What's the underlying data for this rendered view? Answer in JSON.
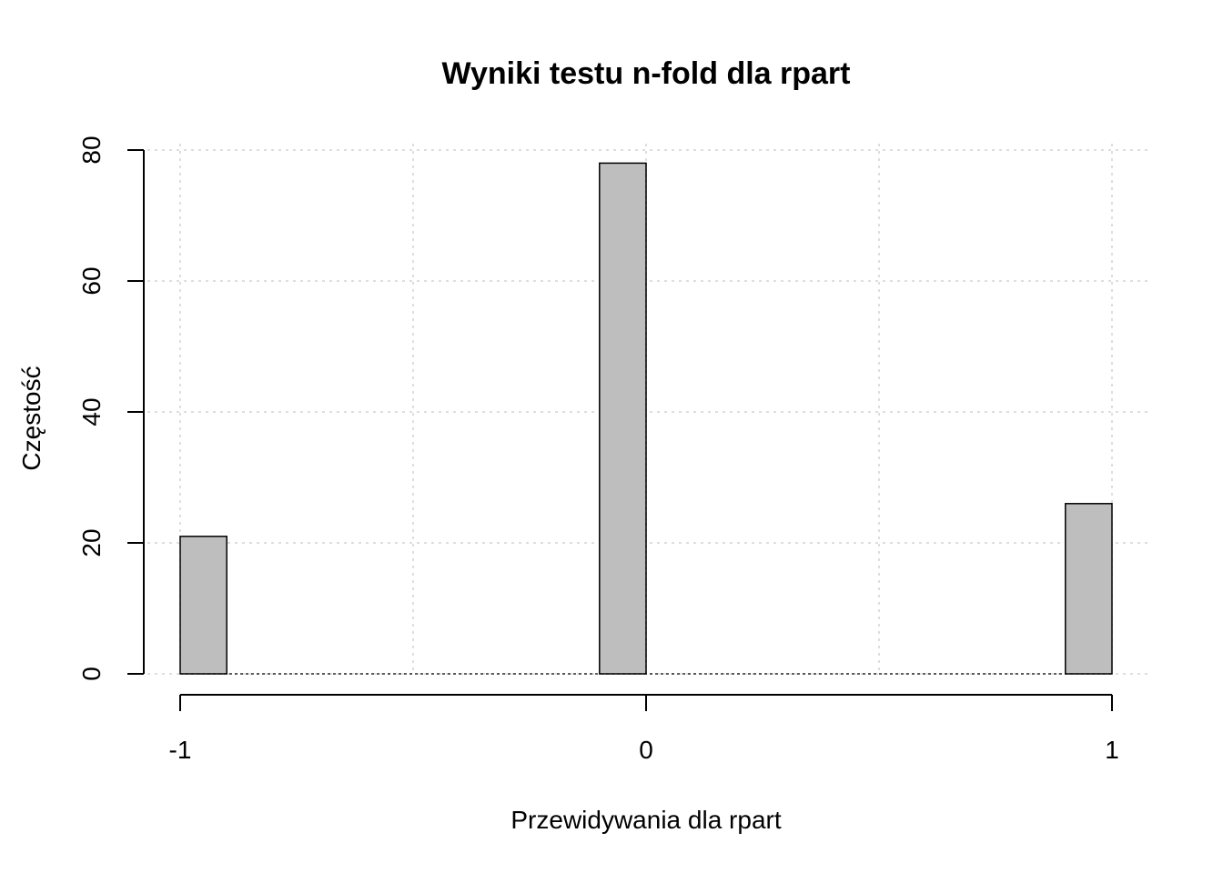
{
  "chart_data": {
    "type": "bar",
    "title": "Wyniki testu n-fold dla rpart",
    "xlabel": "Przewidywania dla rpart",
    "ylabel": "Częstość",
    "categories": [
      "-1",
      "0",
      "1"
    ],
    "x": [
      -1,
      0,
      1
    ],
    "values": [
      21,
      78,
      26
    ],
    "xlim": [
      -1,
      1
    ],
    "ylim": [
      0,
      80
    ],
    "xticks": [
      "-1",
      "0",
      "1"
    ],
    "yticks": [
      "0",
      "20",
      "40",
      "60",
      "80"
    ],
    "grid": true,
    "bar_color": "#bebebe",
    "grid_color": "#d3d3d3"
  }
}
